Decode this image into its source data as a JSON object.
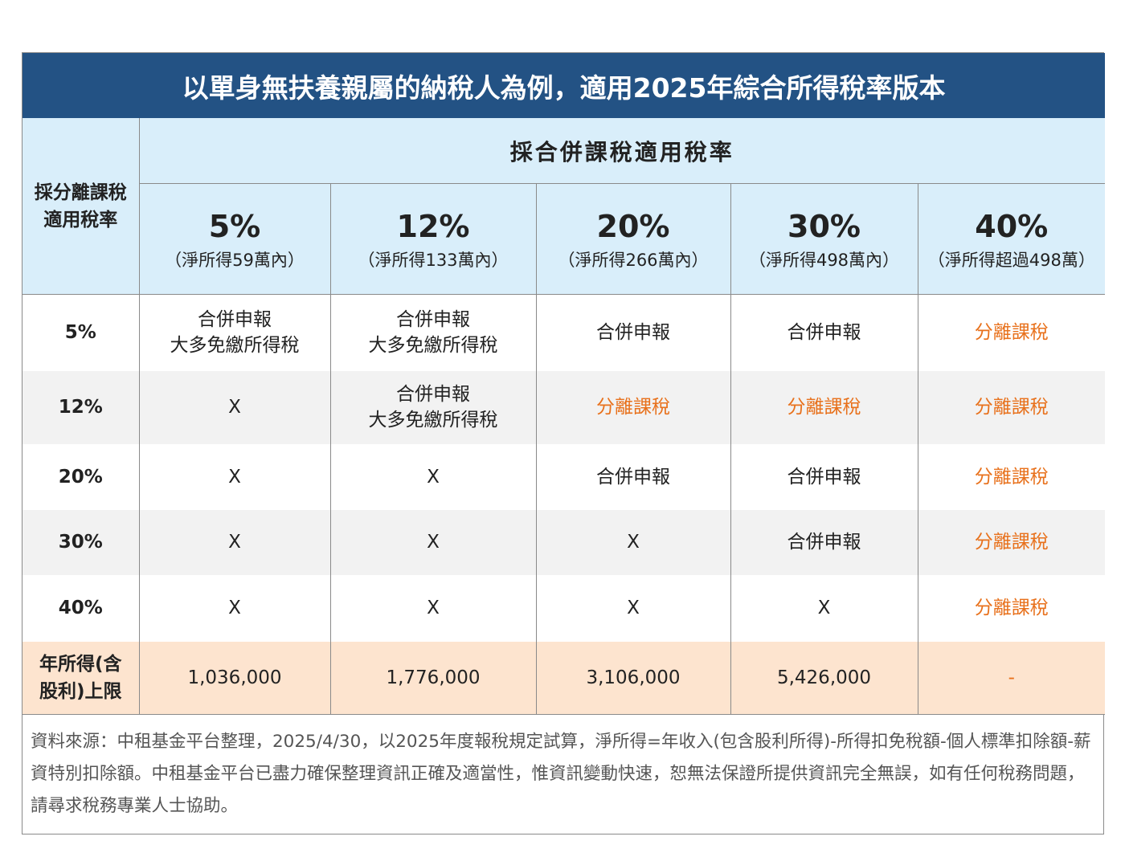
{
  "title": "以單身無扶養親屬的納稅人為例，適用2025年綜合所得稅率版本",
  "table": {
    "corner": [
      "採分離課稅",
      "適用稅率"
    ],
    "group_header": "採合併課稅適用稅率",
    "columns": [
      {
        "rate": "5%",
        "note": "（淨所得59萬內）"
      },
      {
        "rate": "12%",
        "note": "（淨所得133萬內）"
      },
      {
        "rate": "20%",
        "note": "（淨所得266萬內）"
      },
      {
        "rate": "30%",
        "note": "（淨所得498萬內）"
      },
      {
        "rate": "40%",
        "note": "（淨所得超過498萬）"
      }
    ],
    "rows": [
      {
        "label": "5%",
        "background": "#ffffff",
        "cells": [
          {
            "lines": [
              "合併申報",
              "大多免繳所得稅"
            ]
          },
          {
            "lines": [
              "合併申報",
              "大多免繳所得稅"
            ]
          },
          {
            "lines": [
              "合併申報"
            ]
          },
          {
            "lines": [
              "合併申報"
            ]
          },
          {
            "lines": [
              "分離課稅"
            ],
            "color": "#e8711c"
          }
        ]
      },
      {
        "label": "12%",
        "background": "#f2f2f2",
        "cells": [
          {
            "lines": [
              "X"
            ]
          },
          {
            "lines": [
              "合併申報",
              "大多免繳所得稅"
            ]
          },
          {
            "lines": [
              "分離課稅"
            ],
            "color": "#e8711c"
          },
          {
            "lines": [
              "分離課稅"
            ],
            "color": "#e8711c"
          },
          {
            "lines": [
              "分離課稅"
            ],
            "color": "#e8711c"
          }
        ]
      },
      {
        "label": "20%",
        "background": "#ffffff",
        "cells": [
          {
            "lines": [
              "X"
            ]
          },
          {
            "lines": [
              "X"
            ]
          },
          {
            "lines": [
              "合併申報"
            ]
          },
          {
            "lines": [
              "合併申報"
            ]
          },
          {
            "lines": [
              "分離課稅"
            ],
            "color": "#e8711c"
          }
        ]
      },
      {
        "label": "30%",
        "background": "#f2f2f2",
        "cells": [
          {
            "lines": [
              "X"
            ]
          },
          {
            "lines": [
              "X"
            ]
          },
          {
            "lines": [
              "X"
            ]
          },
          {
            "lines": [
              "合併申報"
            ]
          },
          {
            "lines": [
              "分離課稅"
            ],
            "color": "#e8711c"
          }
        ]
      },
      {
        "label": "40%",
        "background": "#ffffff",
        "cells": [
          {
            "lines": [
              "X"
            ]
          },
          {
            "lines": [
              "X"
            ]
          },
          {
            "lines": [
              "X"
            ]
          },
          {
            "lines": [
              "X"
            ]
          },
          {
            "lines": [
              "分離課稅"
            ],
            "color": "#e8711c"
          }
        ]
      }
    ],
    "footer": {
      "label": [
        "年所得(含",
        "股利)上限"
      ],
      "values": [
        "1,036,000",
        "1,776,000",
        "3,106,000",
        "5,426,000",
        {
          "text": "-",
          "color": "#e8711c"
        }
      ]
    }
  },
  "footnote": "資料來源：中租基金平台整理，2025/4/30，以2025年度報稅規定試算，淨所得=年收入(包含股利所得)-所得扣免稅額-個人標準扣除額-薪資特別扣除額。中租基金平台已盡力確保整理資訊正確及適當性，惟資訊變動快速，恕無法保證所提供資訊完全無誤，如有任何稅務問題，請尋求稅務專業人士協助。"
}
